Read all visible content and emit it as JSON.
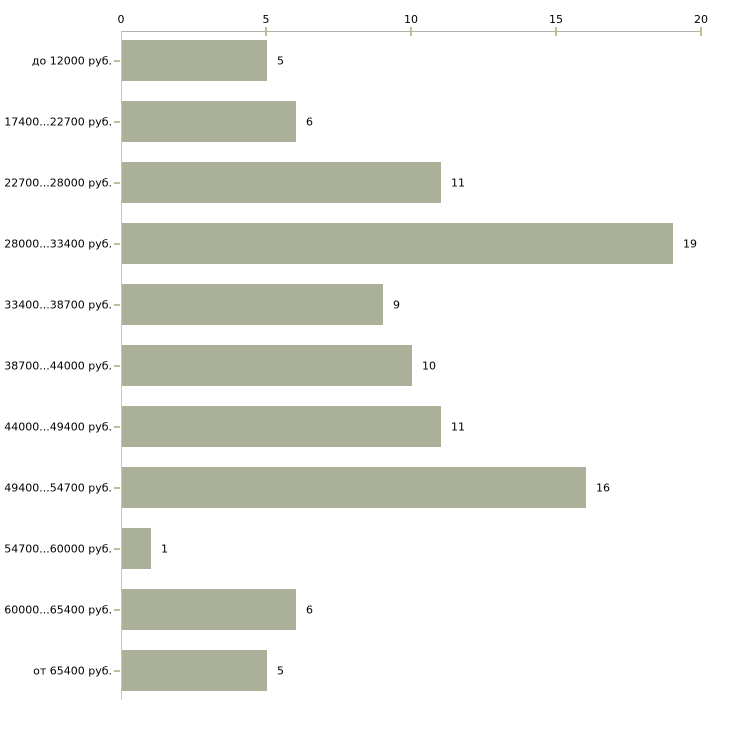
{
  "chart_data": {
    "type": "bar",
    "orientation": "horizontal",
    "title": "",
    "xlabel": "",
    "ylabel": "",
    "categories": [
      "до 12000 руб.",
      "17400...22700 руб.",
      "22700...28000 руб.",
      "28000...33400 руб.",
      "33400...38700 руб.",
      "38700...44000 руб.",
      "44000...49400 руб.",
      "49400...54700 руб.",
      "54700...60000 руб.",
      "60000...65400 руб.",
      "от 65400 руб."
    ],
    "values": [
      5,
      6,
      11,
      19,
      9,
      10,
      11,
      16,
      1,
      6,
      5
    ],
    "value_labels": [
      "5",
      "6",
      "11",
      "19",
      "9",
      "10",
      "11",
      "16",
      "1",
      "6",
      "5"
    ],
    "xlim": [
      0,
      20
    ],
    "x_ticks": [
      0,
      5,
      10,
      15,
      20
    ],
    "x_tick_labels": [
      "0",
      "5",
      "10",
      "15",
      "20"
    ],
    "axis_position": "top",
    "grid": false,
    "legend": null,
    "colors": {
      "bar": "#abb098",
      "x_axis_line": "#b2b2b2",
      "y_axis_line": "#c6c6c6",
      "tick_mark": "#bdbf94",
      "text": "#000000",
      "background": "#ffffff"
    }
  }
}
